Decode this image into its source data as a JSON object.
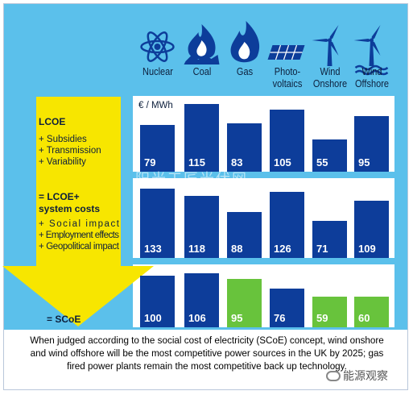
{
  "watermark": "阳光工匠光伏网",
  "brand": "能源观察",
  "footer": "When judged according to the social cost of electricity (SCoE) concept, wind onshore and wind offshore will be the most competitive power sources in the UK by 2025; gas fired power plants remain the most competitive back up technology.",
  "colors": {
    "blue": "#0d3d9a",
    "green": "#68c33c",
    "arrow": "#f7e600",
    "panel": "#5bc0eb",
    "row_bg": "#ffffff",
    "text_dark": "#0d1f3c"
  },
  "chart_data": {
    "type": "bar",
    "unit": "€ / MWh",
    "categories": [
      {
        "label": "Nuclear",
        "icon": "atom-icon"
      },
      {
        "label": "Coal",
        "icon": "flame-coal-icon"
      },
      {
        "label": "Gas",
        "icon": "flame-icon"
      },
      {
        "label": "Photo-\nvoltaics",
        "icon": "solar-panel-icon"
      },
      {
        "label": "Wind\nOnshore",
        "icon": "wind-turbine-icon"
      },
      {
        "label": "Wind\nOffshore",
        "icon": "offshore-turbine-icon"
      }
    ],
    "rows": [
      {
        "id": "lcoe",
        "label_lines": [
          "LCOE",
          "+ Subsidies",
          "+ Transmission",
          "+ Variability"
        ],
        "values": [
          79,
          115,
          83,
          105,
          55,
          95
        ],
        "highlight": []
      },
      {
        "id": "lcoe_system",
        "label_lines": [
          "= LCOE+",
          "system costs",
          "+ Social impact",
          "+ Employment effects",
          "+ Geopolitical impact"
        ],
        "values": [
          133,
          118,
          88,
          126,
          71,
          109
        ],
        "highlight": []
      },
      {
        "id": "scoe",
        "label_lines": [
          "= SCoE"
        ],
        "values": [
          100,
          106,
          95,
          76,
          59,
          60
        ],
        "highlight": [
          2,
          4,
          5
        ]
      }
    ]
  }
}
